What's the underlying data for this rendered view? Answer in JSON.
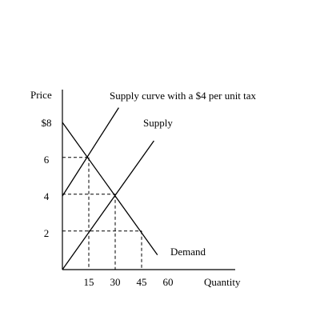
{
  "chart_data": {
    "type": "line",
    "title": "",
    "xlabel": "Quantity",
    "ylabel": "Price",
    "xlim": [
      0,
      92
    ],
    "ylim": [
      0,
      8.8
    ],
    "x_ticks": [
      {
        "value": 15,
        "label": "15"
      },
      {
        "value": 30,
        "label": "30"
      },
      {
        "value": 45,
        "label": "45"
      },
      {
        "value": 60,
        "label": "60"
      }
    ],
    "y_ticks": [
      {
        "value": 2,
        "label": "2"
      },
      {
        "value": 4,
        "label": "4"
      },
      {
        "value": 6,
        "label": "6"
      },
      {
        "value": 8,
        "label": "$8"
      }
    ],
    "series": [
      {
        "name": "Supply curve with a $4 per unit tax",
        "x": [
          0,
          32
        ],
        "y": [
          4,
          8.8
        ]
      },
      {
        "name": "Supply",
        "x": [
          0,
          52
        ],
        "y": [
          0,
          7.0
        ]
      },
      {
        "name": "Demand",
        "x": [
          0,
          54
        ],
        "y": [
          8,
          0.8
        ]
      }
    ],
    "guide_points": [
      {
        "x": 15,
        "y": 6.1
      },
      {
        "x": 30,
        "y": 4.1
      },
      {
        "x": 45,
        "y": 2.1
      }
    ],
    "grid": false,
    "legend": "none"
  }
}
